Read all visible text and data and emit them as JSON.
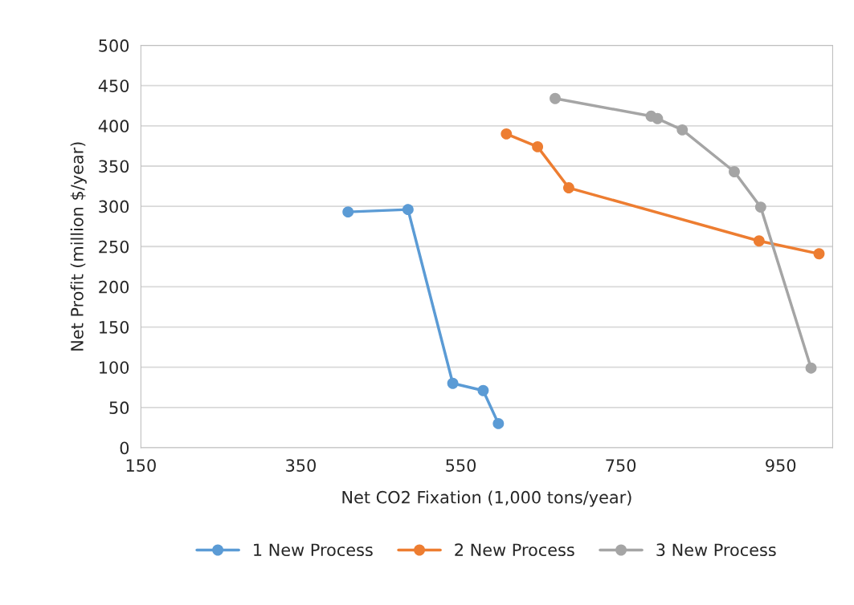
{
  "chart_data": {
    "type": "line",
    "xlabel": "Net CO2 Fixation (1,000 tons/year)",
    "ylabel": "Net Profit (million $/year)",
    "xlim": [
      150,
      1015
    ],
    "xticks": [
      150,
      350,
      550,
      750,
      950
    ],
    "ylim": [
      0,
      500
    ],
    "yticks": [
      0,
      50,
      100,
      150,
      200,
      250,
      300,
      350,
      400,
      450,
      500
    ],
    "grid": "y",
    "legend": "bottom",
    "marker": "circle",
    "line_style": "solid",
    "series": [
      {
        "name": "1 New Process",
        "color": "#5b9bd5",
        "x": [
          409,
          484,
          540,
          578,
          597
        ],
        "values": [
          293,
          296,
          80,
          71,
          30
        ]
      },
      {
        "name": "2 New Process",
        "color": "#ed7d31",
        "x": [
          607,
          646,
          685,
          923,
          998
        ],
        "values": [
          390,
          374,
          323,
          257,
          241
        ]
      },
      {
        "name": "3 New Process",
        "color": "#a5a5a5",
        "x": [
          668,
          788,
          796,
          827,
          892,
          925,
          988
        ],
        "values": [
          434,
          412,
          409,
          395,
          343,
          299,
          99
        ]
      }
    ]
  }
}
